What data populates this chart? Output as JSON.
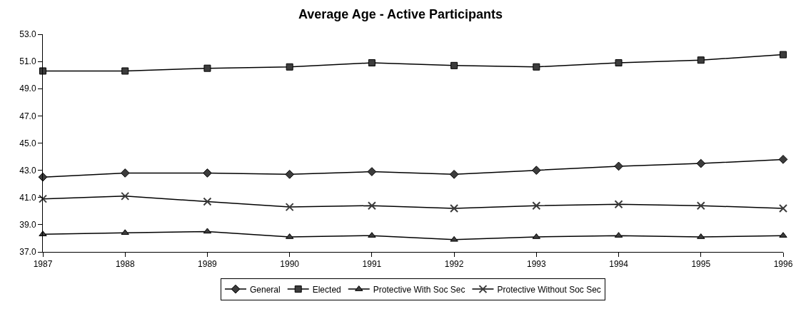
{
  "chart_data": {
    "type": "line",
    "title": "Average Age - Active Participants",
    "x": [
      1987,
      1988,
      1989,
      1990,
      1991,
      1992,
      1993,
      1994,
      1995,
      1996
    ],
    "xlim": [
      1987,
      1996
    ],
    "xticks": [
      1987,
      1988,
      1989,
      1990,
      1991,
      1992,
      1993,
      1994,
      1995,
      1996
    ],
    "ylim": [
      37,
      53
    ],
    "yticks": [
      {
        "value": 37,
        "label": "37.0"
      },
      {
        "value": 39,
        "label": "39.0"
      },
      {
        "value": 41,
        "label": "41.0"
      },
      {
        "value": 43,
        "label": "43.0"
      },
      {
        "value": 45,
        "label": "45.0"
      },
      {
        "value": 47,
        "label": "47.0"
      },
      {
        "value": 49,
        "label": "49.0"
      },
      {
        "value": 51,
        "label": "51.0"
      },
      {
        "value": 53,
        "label": "53.0"
      }
    ],
    "legend": "bottom",
    "line_style": "solid",
    "series": [
      {
        "name": "General",
        "color": "#3c3c3c",
        "marker": "diamond",
        "values": [
          42.5,
          42.8,
          42.8,
          42.7,
          42.9,
          42.7,
          43.0,
          43.3,
          43.5,
          43.8
        ]
      },
      {
        "name": "Elected",
        "color": "#3c3c3c",
        "marker": "square",
        "values": [
          50.3,
          50.3,
          50.5,
          50.6,
          50.9,
          50.7,
          50.6,
          50.9,
          51.1,
          51.5
        ]
      },
      {
        "name": "Protective With Soc Sec",
        "color": "#3c3c3c",
        "marker": "triangle",
        "values": [
          38.3,
          38.4,
          38.5,
          38.1,
          38.2,
          37.9,
          38.1,
          38.2,
          38.1,
          38.2
        ]
      },
      {
        "name": "Protective Without Soc Sec",
        "color": "#3c3c3c",
        "marker": "cross",
        "values": [
          40.9,
          41.1,
          40.7,
          40.3,
          40.4,
          40.2,
          40.4,
          40.5,
          40.4,
          40.2
        ]
      }
    ]
  }
}
